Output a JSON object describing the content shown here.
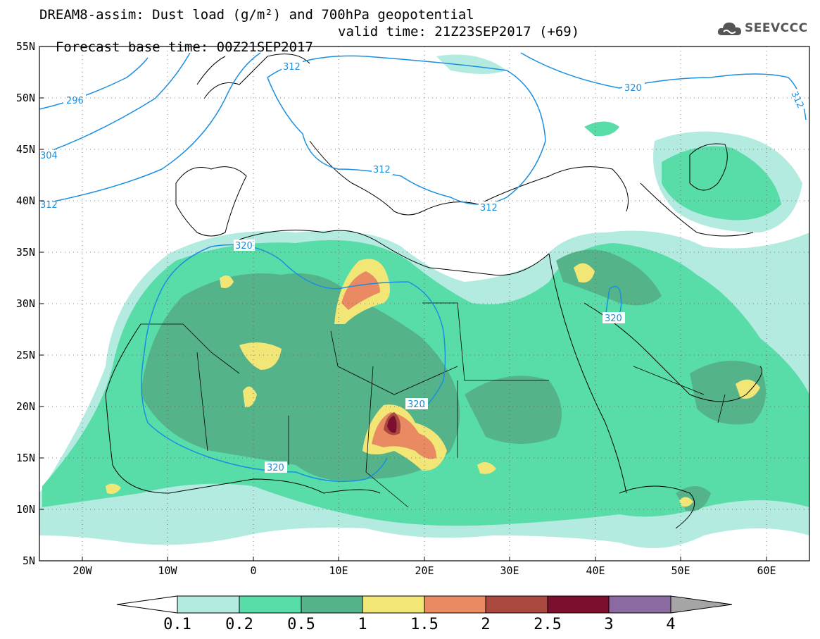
{
  "title_line1": "DREAM8-assim: Dust load (g/m²) and 700hPa geopotential",
  "base_time_label": "Forecast base time: 00Z21SEP2017",
  "valid_time_label": "valid time: 21Z23SEP2017 (+69)",
  "logo_text": "SEEVCCC",
  "logo_icon": "cloud-icon",
  "lat_ticks": [
    "55N",
    "50N",
    "45N",
    "40N",
    "35N",
    "30N",
    "25N",
    "20N",
    "15N",
    "10N",
    "5N"
  ],
  "lon_ticks": [
    "20W",
    "10W",
    "0",
    "10E",
    "20E",
    "30E",
    "40E",
    "50E",
    "60E"
  ],
  "colorbar": {
    "labels": [
      "0.1",
      "0.2",
      "0.5",
      "1",
      "1.5",
      "2",
      "2.5",
      "3",
      "4"
    ],
    "colors": [
      "#ffffff",
      "#b4ebe0",
      "#58dca8",
      "#55b38a",
      "#f2e677",
      "#e98a63",
      "#a8483e",
      "#7d0f2e",
      "#8a6aa0",
      "#a5a5a5"
    ]
  },
  "contour_labels": [
    "296",
    "304",
    "312",
    "312",
    "312",
    "312",
    "320",
    "312",
    "320",
    "320",
    "320",
    "320"
  ],
  "contour_color": "#1a8fe0"
}
